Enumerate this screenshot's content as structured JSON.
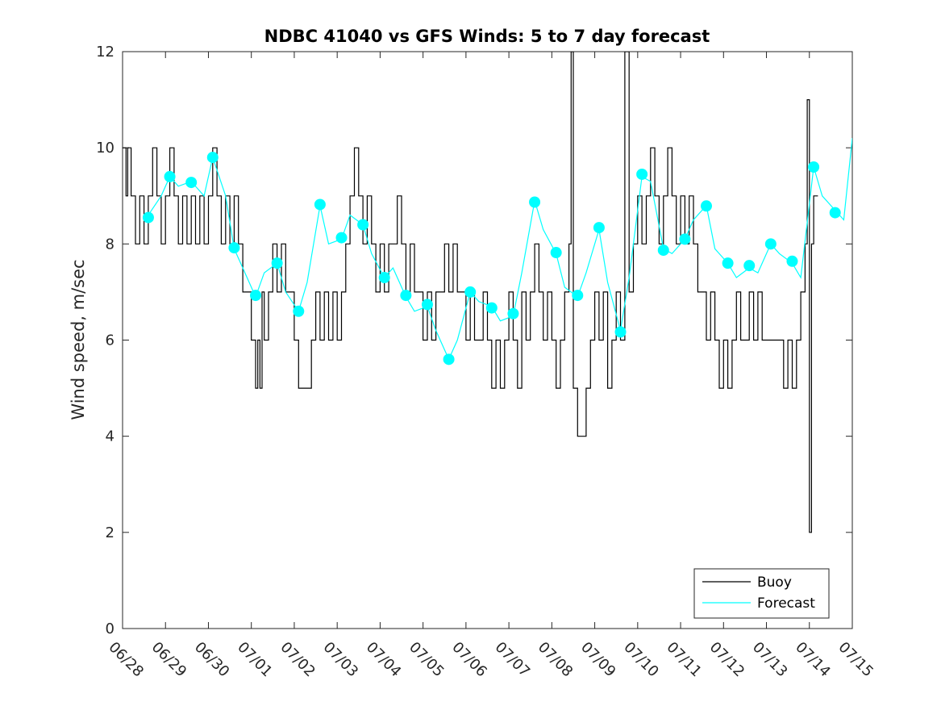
{
  "chart_data": {
    "type": "line",
    "title": "NDBC 41040 vs GFS Winds: 5 to 7 day forecast",
    "xlabel": "",
    "ylabel": "Wind speed, m/sec",
    "ylim": [
      0,
      12
    ],
    "yticks": [
      0,
      2,
      4,
      6,
      8,
      10,
      12
    ],
    "xlim": [
      0,
      17
    ],
    "xtick_labels": [
      "06/28",
      "06/29",
      "06/30",
      "07/01",
      "07/02",
      "07/03",
      "07/04",
      "07/05",
      "07/06",
      "07/07",
      "07/08",
      "07/09",
      "07/10",
      "07/11",
      "07/12",
      "07/13",
      "07/14",
      "07/15"
    ],
    "grid": false,
    "legend_position": "bottom-right",
    "colors": {
      "buoy": "#000000",
      "forecast": "#00ffff"
    },
    "series": [
      {
        "name": "Buoy",
        "color": "#000000",
        "points": [
          [
            0.0,
            10
          ],
          [
            0.08,
            9
          ],
          [
            0.12,
            10
          ],
          [
            0.2,
            9
          ],
          [
            0.3,
            8
          ],
          [
            0.4,
            9
          ],
          [
            0.5,
            8
          ],
          [
            0.6,
            9
          ],
          [
            0.7,
            10
          ],
          [
            0.8,
            9
          ],
          [
            0.9,
            8
          ],
          [
            1.0,
            9
          ],
          [
            1.1,
            10
          ],
          [
            1.2,
            9
          ],
          [
            1.3,
            8
          ],
          [
            1.4,
            9
          ],
          [
            1.5,
            8
          ],
          [
            1.6,
            9
          ],
          [
            1.7,
            8
          ],
          [
            1.8,
            9
          ],
          [
            1.9,
            8
          ],
          [
            2.0,
            9
          ],
          [
            2.1,
            10
          ],
          [
            2.2,
            9
          ],
          [
            2.3,
            8
          ],
          [
            2.4,
            9
          ],
          [
            2.5,
            8
          ],
          [
            2.6,
            9
          ],
          [
            2.7,
            8
          ],
          [
            2.8,
            7
          ],
          [
            2.9,
            7
          ],
          [
            3.0,
            6
          ],
          [
            3.05,
            6
          ],
          [
            3.1,
            5
          ],
          [
            3.15,
            6
          ],
          [
            3.2,
            5
          ],
          [
            3.25,
            7
          ],
          [
            3.3,
            6
          ],
          [
            3.4,
            7
          ],
          [
            3.5,
            8
          ],
          [
            3.6,
            7
          ],
          [
            3.7,
            8
          ],
          [
            3.8,
            7
          ],
          [
            3.9,
            7
          ],
          [
            4.0,
            6
          ],
          [
            4.05,
            6
          ],
          [
            4.1,
            5
          ],
          [
            4.2,
            5
          ],
          [
            4.3,
            5
          ],
          [
            4.4,
            6
          ],
          [
            4.5,
            7
          ],
          [
            4.6,
            6
          ],
          [
            4.7,
            7
          ],
          [
            4.8,
            6
          ],
          [
            4.9,
            7
          ],
          [
            5.0,
            6
          ],
          [
            5.1,
            7
          ],
          [
            5.2,
            8
          ],
          [
            5.3,
            9
          ],
          [
            5.4,
            10
          ],
          [
            5.5,
            9
          ],
          [
            5.6,
            8
          ],
          [
            5.7,
            9
          ],
          [
            5.8,
            8
          ],
          [
            5.9,
            7
          ],
          [
            6.0,
            8
          ],
          [
            6.1,
            7
          ],
          [
            6.2,
            8
          ],
          [
            6.3,
            8
          ],
          [
            6.4,
            9
          ],
          [
            6.5,
            8
          ],
          [
            6.6,
            7
          ],
          [
            6.7,
            8
          ],
          [
            6.8,
            7
          ],
          [
            6.9,
            7
          ],
          [
            7.0,
            6
          ],
          [
            7.1,
            7
          ],
          [
            7.2,
            6
          ],
          [
            7.3,
            7
          ],
          [
            7.4,
            7
          ],
          [
            7.5,
            8
          ],
          [
            7.6,
            7
          ],
          [
            7.7,
            8
          ],
          [
            7.8,
            7
          ],
          [
            7.9,
            7
          ],
          [
            8.0,
            6
          ],
          [
            8.1,
            7
          ],
          [
            8.2,
            6
          ],
          [
            8.3,
            6
          ],
          [
            8.4,
            7
          ],
          [
            8.5,
            6
          ],
          [
            8.6,
            5
          ],
          [
            8.7,
            6
          ],
          [
            8.8,
            5
          ],
          [
            8.9,
            6
          ],
          [
            9.0,
            7
          ],
          [
            9.1,
            6
          ],
          [
            9.2,
            5
          ],
          [
            9.3,
            7
          ],
          [
            9.4,
            6
          ],
          [
            9.5,
            7
          ],
          [
            9.6,
            8
          ],
          [
            9.7,
            7
          ],
          [
            9.8,
            6
          ],
          [
            9.9,
            7
          ],
          [
            10.0,
            6
          ],
          [
            10.1,
            5
          ],
          [
            10.2,
            6
          ],
          [
            10.3,
            7
          ],
          [
            10.4,
            8
          ],
          [
            10.45,
            12
          ],
          [
            10.5,
            5
          ],
          [
            10.6,
            4
          ],
          [
            10.7,
            4
          ],
          [
            10.8,
            5
          ],
          [
            10.9,
            6
          ],
          [
            11.0,
            7
          ],
          [
            11.1,
            6
          ],
          [
            11.2,
            7
          ],
          [
            11.3,
            5
          ],
          [
            11.4,
            6
          ],
          [
            11.5,
            7
          ],
          [
            11.6,
            6
          ],
          [
            11.7,
            12
          ],
          [
            11.8,
            7
          ],
          [
            11.9,
            8
          ],
          [
            12.0,
            9
          ],
          [
            12.1,
            8
          ],
          [
            12.2,
            9
          ],
          [
            12.3,
            10
          ],
          [
            12.4,
            9
          ],
          [
            12.5,
            8
          ],
          [
            12.6,
            9
          ],
          [
            12.7,
            10
          ],
          [
            12.8,
            9
          ],
          [
            12.9,
            8
          ],
          [
            13.0,
            9
          ],
          [
            13.1,
            8
          ],
          [
            13.2,
            9
          ],
          [
            13.3,
            8
          ],
          [
            13.4,
            7
          ],
          [
            13.5,
            7
          ],
          [
            13.6,
            6
          ],
          [
            13.7,
            7
          ],
          [
            13.8,
            6
          ],
          [
            13.9,
            5
          ],
          [
            14.0,
            6
          ],
          [
            14.1,
            5
          ],
          [
            14.2,
            6
          ],
          [
            14.3,
            7
          ],
          [
            14.4,
            6
          ],
          [
            14.5,
            6
          ],
          [
            14.6,
            7
          ],
          [
            14.7,
            6
          ],
          [
            14.8,
            7
          ],
          [
            14.9,
            6
          ],
          [
            15.0,
            6
          ],
          [
            15.1,
            6
          ],
          [
            15.2,
            6
          ],
          [
            15.3,
            6
          ],
          [
            15.4,
            5
          ],
          [
            15.5,
            6
          ],
          [
            15.6,
            5
          ],
          [
            15.7,
            6
          ],
          [
            15.8,
            7
          ],
          [
            15.9,
            8
          ],
          [
            15.95,
            11
          ],
          [
            16.0,
            2
          ],
          [
            16.05,
            8
          ],
          [
            16.1,
            9
          ],
          [
            16.2,
            9
          ]
        ]
      },
      {
        "name": "Forecast",
        "color": "#00ffff",
        "points": [
          [
            0.6,
            8.6
          ],
          [
            0.9,
            9.0
          ],
          [
            1.1,
            9.4
          ],
          [
            1.3,
            9.2
          ],
          [
            1.6,
            9.3
          ],
          [
            1.9,
            9.0
          ],
          [
            2.1,
            9.8
          ],
          [
            2.4,
            9.0
          ],
          [
            2.6,
            7.9
          ],
          [
            2.8,
            7.5
          ],
          [
            3.1,
            6.9
          ],
          [
            3.3,
            7.4
          ],
          [
            3.6,
            7.6
          ],
          [
            3.8,
            7.0
          ],
          [
            4.1,
            6.6
          ],
          [
            4.3,
            7.2
          ],
          [
            4.6,
            8.8
          ],
          [
            4.8,
            8.0
          ],
          [
            5.1,
            8.1
          ],
          [
            5.3,
            8.6
          ],
          [
            5.6,
            8.4
          ],
          [
            5.8,
            7.8
          ],
          [
            6.1,
            7.3
          ],
          [
            6.3,
            7.5
          ],
          [
            6.6,
            6.9
          ],
          [
            6.8,
            6.6
          ],
          [
            7.1,
            6.7
          ],
          [
            7.3,
            6.2
          ],
          [
            7.6,
            5.6
          ],
          [
            7.8,
            6.0
          ],
          [
            8.1,
            7.0
          ],
          [
            8.3,
            6.8
          ],
          [
            8.6,
            6.7
          ],
          [
            8.8,
            6.4
          ],
          [
            9.1,
            6.5
          ],
          [
            9.3,
            7.4
          ],
          [
            9.6,
            8.9
          ],
          [
            9.8,
            8.3
          ],
          [
            10.1,
            7.8
          ],
          [
            10.3,
            7.1
          ],
          [
            10.6,
            6.9
          ],
          [
            10.8,
            7.4
          ],
          [
            11.1,
            8.3
          ],
          [
            11.3,
            7.2
          ],
          [
            11.6,
            6.2
          ],
          [
            11.8,
            7.3
          ],
          [
            12.1,
            9.4
          ],
          [
            12.3,
            9.3
          ],
          [
            12.6,
            7.9
          ],
          [
            12.8,
            7.8
          ],
          [
            13.1,
            8.1
          ],
          [
            13.3,
            8.5
          ],
          [
            13.6,
            8.8
          ],
          [
            13.8,
            7.9
          ],
          [
            14.1,
            7.6
          ],
          [
            14.3,
            7.3
          ],
          [
            14.6,
            7.5
          ],
          [
            14.8,
            7.4
          ],
          [
            15.1,
            8.0
          ],
          [
            15.3,
            7.8
          ],
          [
            15.6,
            7.6
          ],
          [
            15.8,
            7.3
          ],
          [
            16.1,
            9.6
          ],
          [
            16.3,
            9.0
          ],
          [
            16.6,
            8.7
          ],
          [
            16.8,
            8.5
          ],
          [
            17.0,
            10.2
          ]
        ]
      }
    ],
    "forecast_markers": [
      [
        0.6,
        8.55
      ],
      [
        1.1,
        9.4
      ],
      [
        1.6,
        9.28
      ],
      [
        2.1,
        9.8
      ],
      [
        2.6,
        7.92
      ],
      [
        3.1,
        6.93
      ],
      [
        3.6,
        7.6
      ],
      [
        4.1,
        6.6
      ],
      [
        4.6,
        8.82
      ],
      [
        5.1,
        8.13
      ],
      [
        5.6,
        8.4
      ],
      [
        6.1,
        7.3
      ],
      [
        6.6,
        6.93
      ],
      [
        7.1,
        6.74
      ],
      [
        7.6,
        5.6
      ],
      [
        8.1,
        7.0
      ],
      [
        8.6,
        6.67
      ],
      [
        9.1,
        6.55
      ],
      [
        9.6,
        8.87
      ],
      [
        10.1,
        7.82
      ],
      [
        10.6,
        6.93
      ],
      [
        11.1,
        8.34
      ],
      [
        11.6,
        6.17
      ],
      [
        12.1,
        9.45
      ],
      [
        12.6,
        7.87
      ],
      [
        13.1,
        8.1
      ],
      [
        13.6,
        8.79
      ],
      [
        14.1,
        7.6
      ],
      [
        14.6,
        7.55
      ],
      [
        15.1,
        8.0
      ],
      [
        15.6,
        7.64
      ],
      [
        16.1,
        9.6
      ],
      [
        16.6,
        8.65
      ]
    ],
    "legend": {
      "entries": [
        "Buoy",
        "Forecast"
      ]
    }
  }
}
